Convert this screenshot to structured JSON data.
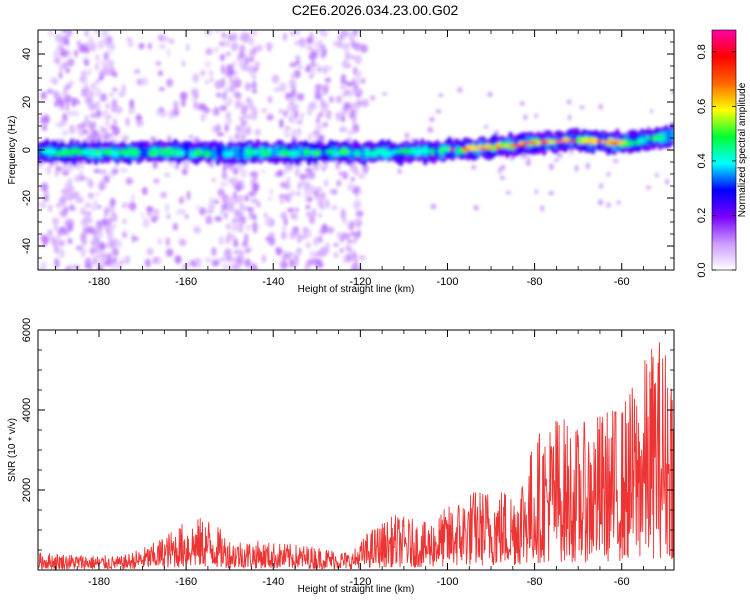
{
  "title": "C2E6.2026.034.23.00.G02",
  "chart_data": [
    {
      "type": "heatmap",
      "title": "C2E6.2026.034.23.00.G02",
      "xlabel": "Height of straight line (km)",
      "ylabel": "Frequency (Hz)",
      "xlim": [
        -194,
        -48
      ],
      "ylim": [
        -50,
        50
      ],
      "xticks": [
        -180,
        -160,
        -140,
        -120,
        -100,
        -80,
        -60
      ],
      "yticks": [
        -40,
        -20,
        0,
        20,
        40
      ],
      "band": {
        "center_hz": [
          {
            "x": -194,
            "y": -1
          },
          {
            "x": -140,
            "y": -1
          },
          {
            "x": -110,
            "y": -1
          },
          {
            "x": -100,
            "y": 0
          },
          {
            "x": -90,
            "y": 1
          },
          {
            "x": -80,
            "y": 3
          },
          {
            "x": -70,
            "y": 4
          },
          {
            "x": -60,
            "y": 3
          },
          {
            "x": -55,
            "y": 4
          },
          {
            "x": -48,
            "y": 6
          }
        ],
        "peak_amplitude_hz_range": [
          -100,
          -60
        ]
      },
      "colorbar": {
        "label": "Normalized spectral amplitude",
        "range": [
          0,
          0.88
        ],
        "ticks": [
          0.0,
          0.2,
          0.4,
          0.6,
          0.8
        ],
        "colors": [
          "#ffffff",
          "#cc99ff",
          "#7700ff",
          "#0000ff",
          "#00ffff",
          "#00ff33",
          "#ffff00",
          "#ff6600",
          "#ff0000",
          "#ff00aa"
        ]
      }
    },
    {
      "type": "line",
      "xlabel": "Height of straight line (km)",
      "ylabel": "SNR (10 * v/v)",
      "xlim": [
        -194,
        -48
      ],
      "ylim": [
        0,
        6000
      ],
      "xticks": [
        -180,
        -160,
        -140,
        -120,
        -100,
        -80,
        -60
      ],
      "yticks": [
        2000,
        4000,
        6000
      ],
      "series": [
        {
          "name": "SNR",
          "color": "#ee3333",
          "envelope": [
            {
              "x": -194,
              "y": 450
            },
            {
              "x": -185,
              "y": 400
            },
            {
              "x": -175,
              "y": 350
            },
            {
              "x": -168,
              "y": 650
            },
            {
              "x": -160,
              "y": 1250
            },
            {
              "x": -155,
              "y": 1350
            },
            {
              "x": -150,
              "y": 800
            },
            {
              "x": -140,
              "y": 700
            },
            {
              "x": -130,
              "y": 600
            },
            {
              "x": -122,
              "y": 450
            },
            {
              "x": -118,
              "y": 1000
            },
            {
              "x": -112,
              "y": 1400
            },
            {
              "x": -105,
              "y": 1200
            },
            {
              "x": -100,
              "y": 1600
            },
            {
              "x": -95,
              "y": 2000
            },
            {
              "x": -90,
              "y": 2100
            },
            {
              "x": -85,
              "y": 2100
            },
            {
              "x": -82,
              "y": 2800
            },
            {
              "x": -79,
              "y": 3500
            },
            {
              "x": -75,
              "y": 4000
            },
            {
              "x": -70,
              "y": 3600
            },
            {
              "x": -65,
              "y": 4000
            },
            {
              "x": -60,
              "y": 4200
            },
            {
              "x": -56,
              "y": 5000
            },
            {
              "x": -52,
              "y": 6000
            },
            {
              "x": -48,
              "y": 5500
            }
          ]
        }
      ]
    }
  ]
}
